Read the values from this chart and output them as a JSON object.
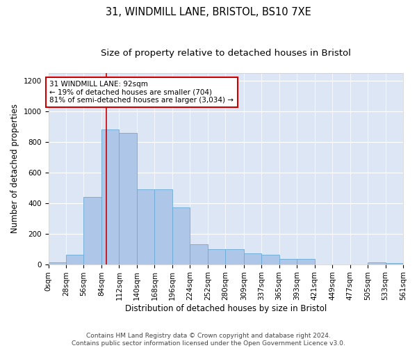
{
  "title1": "31, WINDMILL LANE, BRISTOL, BS10 7XE",
  "title2": "Size of property relative to detached houses in Bristol",
  "xlabel": "Distribution of detached houses by size in Bristol",
  "ylabel": "Number of detached properties",
  "bar_color": "#aec6e8",
  "bar_edge_color": "#6aaad4",
  "vline_color": "#cc0000",
  "vline_x": 92,
  "annotation_text": "31 WINDMILL LANE: 92sqm\n← 19% of detached houses are smaller (704)\n81% of semi-detached houses are larger (3,034) →",
  "annotation_box_color": "#ffffff",
  "annotation_box_edge_color": "#cc0000",
  "bin_edges": [
    0,
    28,
    56,
    84,
    112,
    140,
    168,
    196,
    224,
    252,
    280,
    309,
    337,
    365,
    393,
    421,
    449,
    477,
    505,
    533,
    561
  ],
  "bar_heights": [
    10,
    60,
    440,
    880,
    860,
    490,
    490,
    370,
    130,
    100,
    100,
    70,
    60,
    35,
    35,
    0,
    0,
    0,
    10,
    5
  ],
  "ylim": [
    0,
    1250
  ],
  "yticks": [
    0,
    200,
    400,
    600,
    800,
    1000,
    1200
  ],
  "background_color": "#dce6f5",
  "footer_text": "Contains HM Land Registry data © Crown copyright and database right 2024.\nContains public sector information licensed under the Open Government Licence v3.0.",
  "title1_fontsize": 10.5,
  "title2_fontsize": 9.5,
  "xlabel_fontsize": 8.5,
  "ylabel_fontsize": 8.5,
  "tick_fontsize": 7.5,
  "footer_fontsize": 6.5,
  "annot_fontsize": 7.5
}
